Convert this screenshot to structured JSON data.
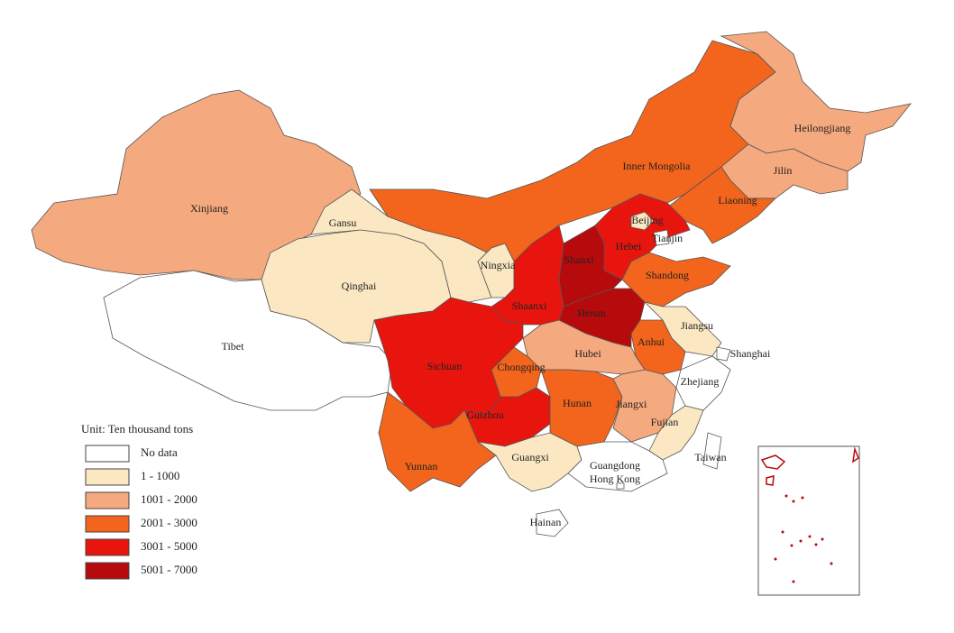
{
  "legend": {
    "title": "Unit: Ten thousand tons",
    "items": [
      {
        "label": "No data",
        "color": "#ffffff"
      },
      {
        "label": "1 - 1000",
        "color": "#fbe8c2"
      },
      {
        "label": "1001 - 2000",
        "color": "#f5a97f"
      },
      {
        "label": "2001 - 3000",
        "color": "#f3651c"
      },
      {
        "label": "3001 - 5000",
        "color": "#e8140e"
      },
      {
        "label": "5001 - 7000",
        "color": "#b70a0c"
      }
    ]
  },
  "provinces": [
    {
      "name": "Xinjiang",
      "color": "#f5a97f"
    },
    {
      "name": "Tibet",
      "color": "#ffffff"
    },
    {
      "name": "Qinghai",
      "color": "#fbe8c2"
    },
    {
      "name": "Gansu",
      "color": "#fbe8c2"
    },
    {
      "name": "Inner Mongolia",
      "color": "#f3651c"
    },
    {
      "name": "Heilongjiang",
      "color": "#f5a97f"
    },
    {
      "name": "Jilin",
      "color": "#f5a97f"
    },
    {
      "name": "Liaoning",
      "color": "#f3651c"
    },
    {
      "name": "Hebei",
      "color": "#e8140e"
    },
    {
      "name": "Beijing",
      "color": "#fbe8c2"
    },
    {
      "name": "Tianjin",
      "color": "#ffffff"
    },
    {
      "name": "Shanxi",
      "color": "#b70a0c"
    },
    {
      "name": "Shandong",
      "color": "#f3651c"
    },
    {
      "name": "Henan",
      "color": "#b70a0c"
    },
    {
      "name": "Ningxia",
      "color": "#fbe8c2"
    },
    {
      "name": "Shaanxi",
      "color": "#e8140e"
    },
    {
      "name": "Jiangsu",
      "color": "#fbe8c2"
    },
    {
      "name": "Shanghai",
      "color": "#ffffff"
    },
    {
      "name": "Anhui",
      "color": "#f3651c"
    },
    {
      "name": "Hubei",
      "color": "#f5a97f"
    },
    {
      "name": "Chongqing",
      "color": "#f3651c"
    },
    {
      "name": "Sichuan",
      "color": "#e8140e"
    },
    {
      "name": "Guizhou",
      "color": "#e8140e"
    },
    {
      "name": "Hunan",
      "color": "#f3651c"
    },
    {
      "name": "Jiangxi",
      "color": "#f5a97f"
    },
    {
      "name": "Zhejiang",
      "color": "#ffffff"
    },
    {
      "name": "Fujian",
      "color": "#fbe8c2"
    },
    {
      "name": "Yunnan",
      "color": "#f3651c"
    },
    {
      "name": "Guangxi",
      "color": "#fbe8c2"
    },
    {
      "name": "Guangdong",
      "color": "#ffffff"
    },
    {
      "name": "Hong Kong",
      "color": "#ffffff"
    },
    {
      "name": "Hainan",
      "color": "#ffffff"
    },
    {
      "name": "Taiwan",
      "color": "#ffffff"
    }
  ]
}
